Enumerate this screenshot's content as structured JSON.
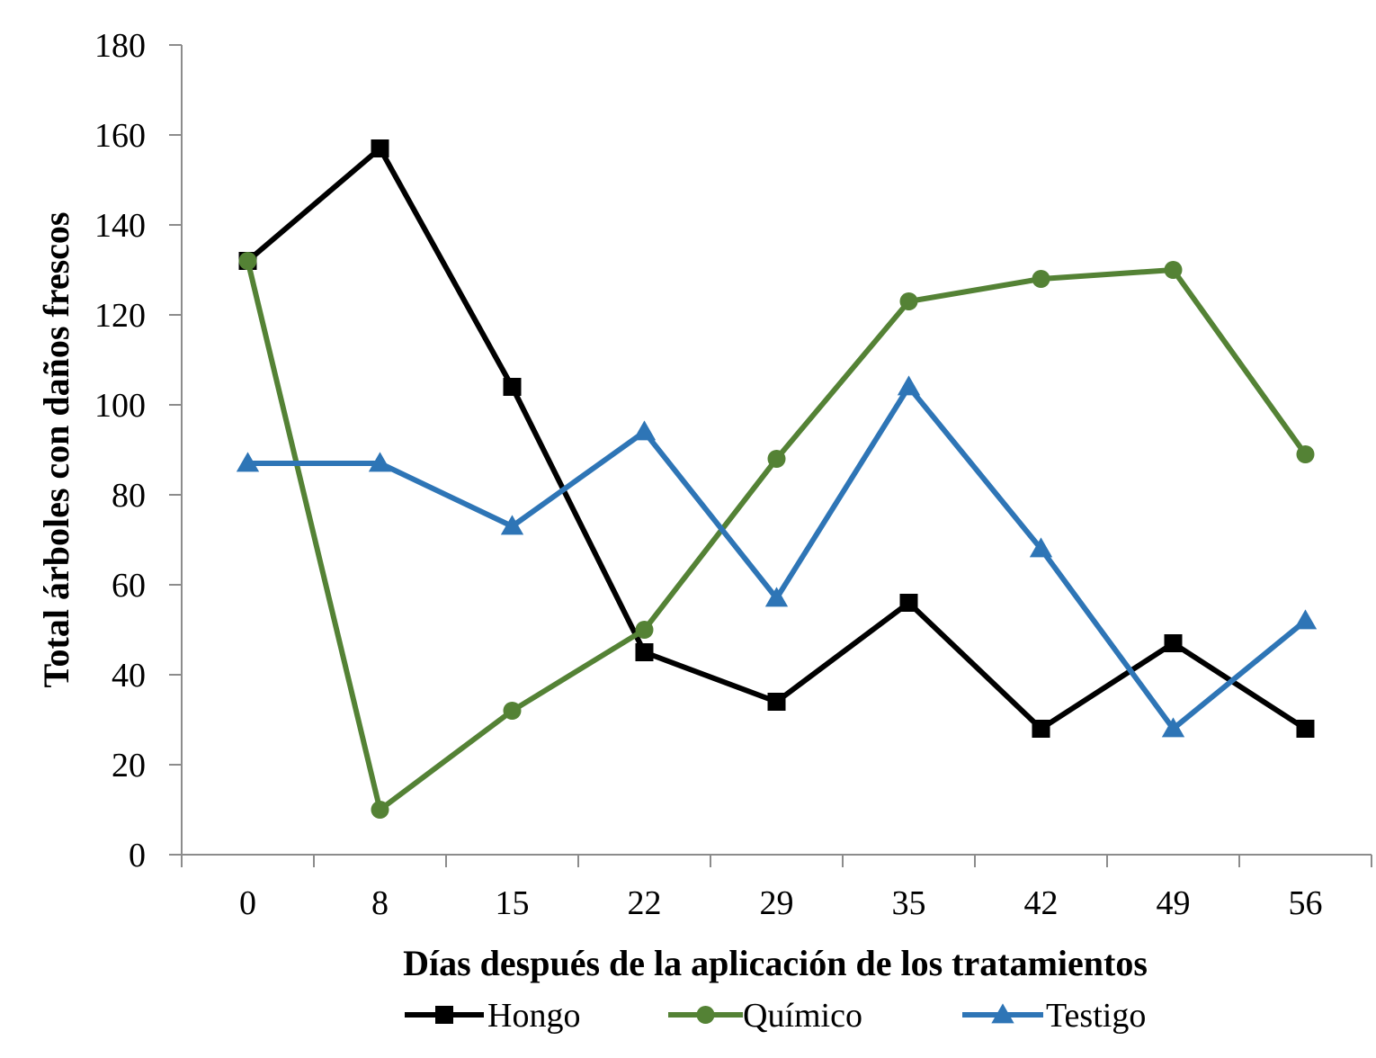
{
  "chart_data": {
    "type": "line",
    "title": "",
    "xlabel": "Días después de la aplicación de los tratamientos",
    "ylabel": "Total árboles con daños frescos",
    "categories": [
      "0",
      "8",
      "15",
      "22",
      "29",
      "35",
      "42",
      "49",
      "56"
    ],
    "ylim": [
      0,
      180
    ],
    "yticks": [
      0,
      20,
      40,
      60,
      80,
      100,
      120,
      140,
      160,
      180
    ],
    "grid": false,
    "legend_position": "bottom",
    "series": [
      {
        "name": "Hongo",
        "marker": "square",
        "color": "#000000",
        "values": [
          132,
          157,
          104,
          45,
          34,
          56,
          28,
          47,
          28
        ]
      },
      {
        "name": "Químico",
        "marker": "circle",
        "color": "#548235",
        "values": [
          132,
          10,
          32,
          50,
          88,
          123,
          128,
          130,
          89
        ]
      },
      {
        "name": "Testigo",
        "marker": "triangle",
        "color": "#2E75B6",
        "values": [
          87,
          87,
          73,
          94,
          57,
          104,
          68,
          28,
          52
        ]
      }
    ]
  }
}
